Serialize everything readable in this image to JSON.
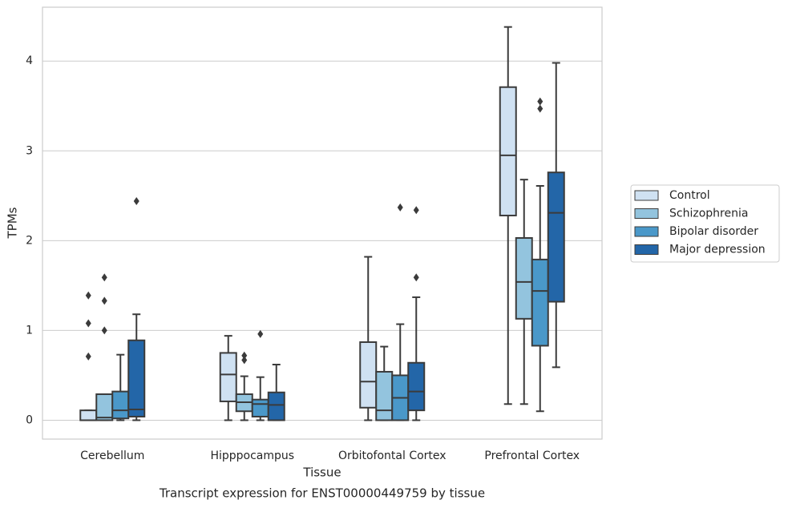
{
  "chart_data": {
    "type": "box",
    "title": "Transcript expression for ENST00000449759 by tissue",
    "xlabel": "Tissue",
    "ylabel": "TPMs",
    "categories": [
      "Cerebellum",
      "Hipppocampus",
      "Orbitofontal Cortex",
      "Prefrontal Cortex"
    ],
    "ylim": [
      -0.21,
      4.6
    ],
    "yticks": [
      0,
      1,
      2,
      3,
      4
    ],
    "grid": true,
    "legend": "right",
    "series": [
      {
        "name": "Control",
        "color": "#cfe1f2",
        "boxes": [
          {
            "whislo": 0,
            "q1": 0,
            "med": 0,
            "q3": 0.11,
            "whishi": 0.11,
            "outliers": [
              1.39,
              1.08,
              0.71
            ]
          },
          {
            "whislo": 0,
            "q1": 0.21,
            "med": 0.51,
            "q3": 0.75,
            "whishi": 0.94,
            "outliers": []
          },
          {
            "whislo": 0,
            "q1": 0.14,
            "med": 0.43,
            "q3": 0.87,
            "whishi": 1.82,
            "outliers": []
          },
          {
            "whislo": 0.18,
            "q1": 2.28,
            "med": 2.95,
            "q3": 3.71,
            "whishi": 4.38,
            "outliers": []
          }
        ]
      },
      {
        "name": "Schizophrenia",
        "color": "#93c4de",
        "boxes": [
          {
            "whislo": 0,
            "q1": 0,
            "med": 0.03,
            "q3": 0.29,
            "whishi": 0.29,
            "outliers": [
              1.59,
              1.33,
              1.0
            ]
          },
          {
            "whislo": 0,
            "q1": 0.1,
            "med": 0.2,
            "q3": 0.29,
            "whishi": 0.49,
            "outliers": [
              0.72,
              0.67
            ]
          },
          {
            "whislo": 0,
            "q1": 0,
            "med": 0.11,
            "q3": 0.54,
            "whishi": 0.82,
            "outliers": []
          },
          {
            "whislo": 0.18,
            "q1": 1.13,
            "med": 1.54,
            "q3": 2.03,
            "whishi": 2.68,
            "outliers": []
          }
        ]
      },
      {
        "name": "Bipolar disorder",
        "color": "#4a98c9",
        "boxes": [
          {
            "whislo": 0,
            "q1": 0.02,
            "med": 0.11,
            "q3": 0.32,
            "whishi": 0.73,
            "outliers": []
          },
          {
            "whislo": 0,
            "q1": 0.04,
            "med": 0.18,
            "q3": 0.23,
            "whishi": 0.48,
            "outliers": [
              0.96
            ]
          },
          {
            "whislo": 0,
            "q1": 0,
            "med": 0.25,
            "q3": 0.5,
            "whishi": 1.07,
            "outliers": [
              2.37
            ]
          },
          {
            "whislo": 0.1,
            "q1": 0.83,
            "med": 1.44,
            "q3": 1.79,
            "whishi": 2.61,
            "outliers": [
              3.55,
              3.47
            ]
          }
        ]
      },
      {
        "name": "Major depression",
        "color": "#2366a8",
        "boxes": [
          {
            "whislo": 0,
            "q1": 0.04,
            "med": 0.12,
            "q3": 0.89,
            "whishi": 1.18,
            "outliers": [
              2.44
            ]
          },
          {
            "whislo": 0,
            "q1": 0,
            "med": 0.17,
            "q3": 0.31,
            "whishi": 0.62,
            "outliers": []
          },
          {
            "whislo": 0,
            "q1": 0.11,
            "med": 0.32,
            "q3": 0.64,
            "whishi": 1.37,
            "outliers": [
              2.34,
              1.59
            ]
          },
          {
            "whislo": 0.59,
            "q1": 1.32,
            "med": 2.31,
            "q3": 2.76,
            "whishi": 3.98,
            "outliers": []
          }
        ]
      }
    ]
  }
}
